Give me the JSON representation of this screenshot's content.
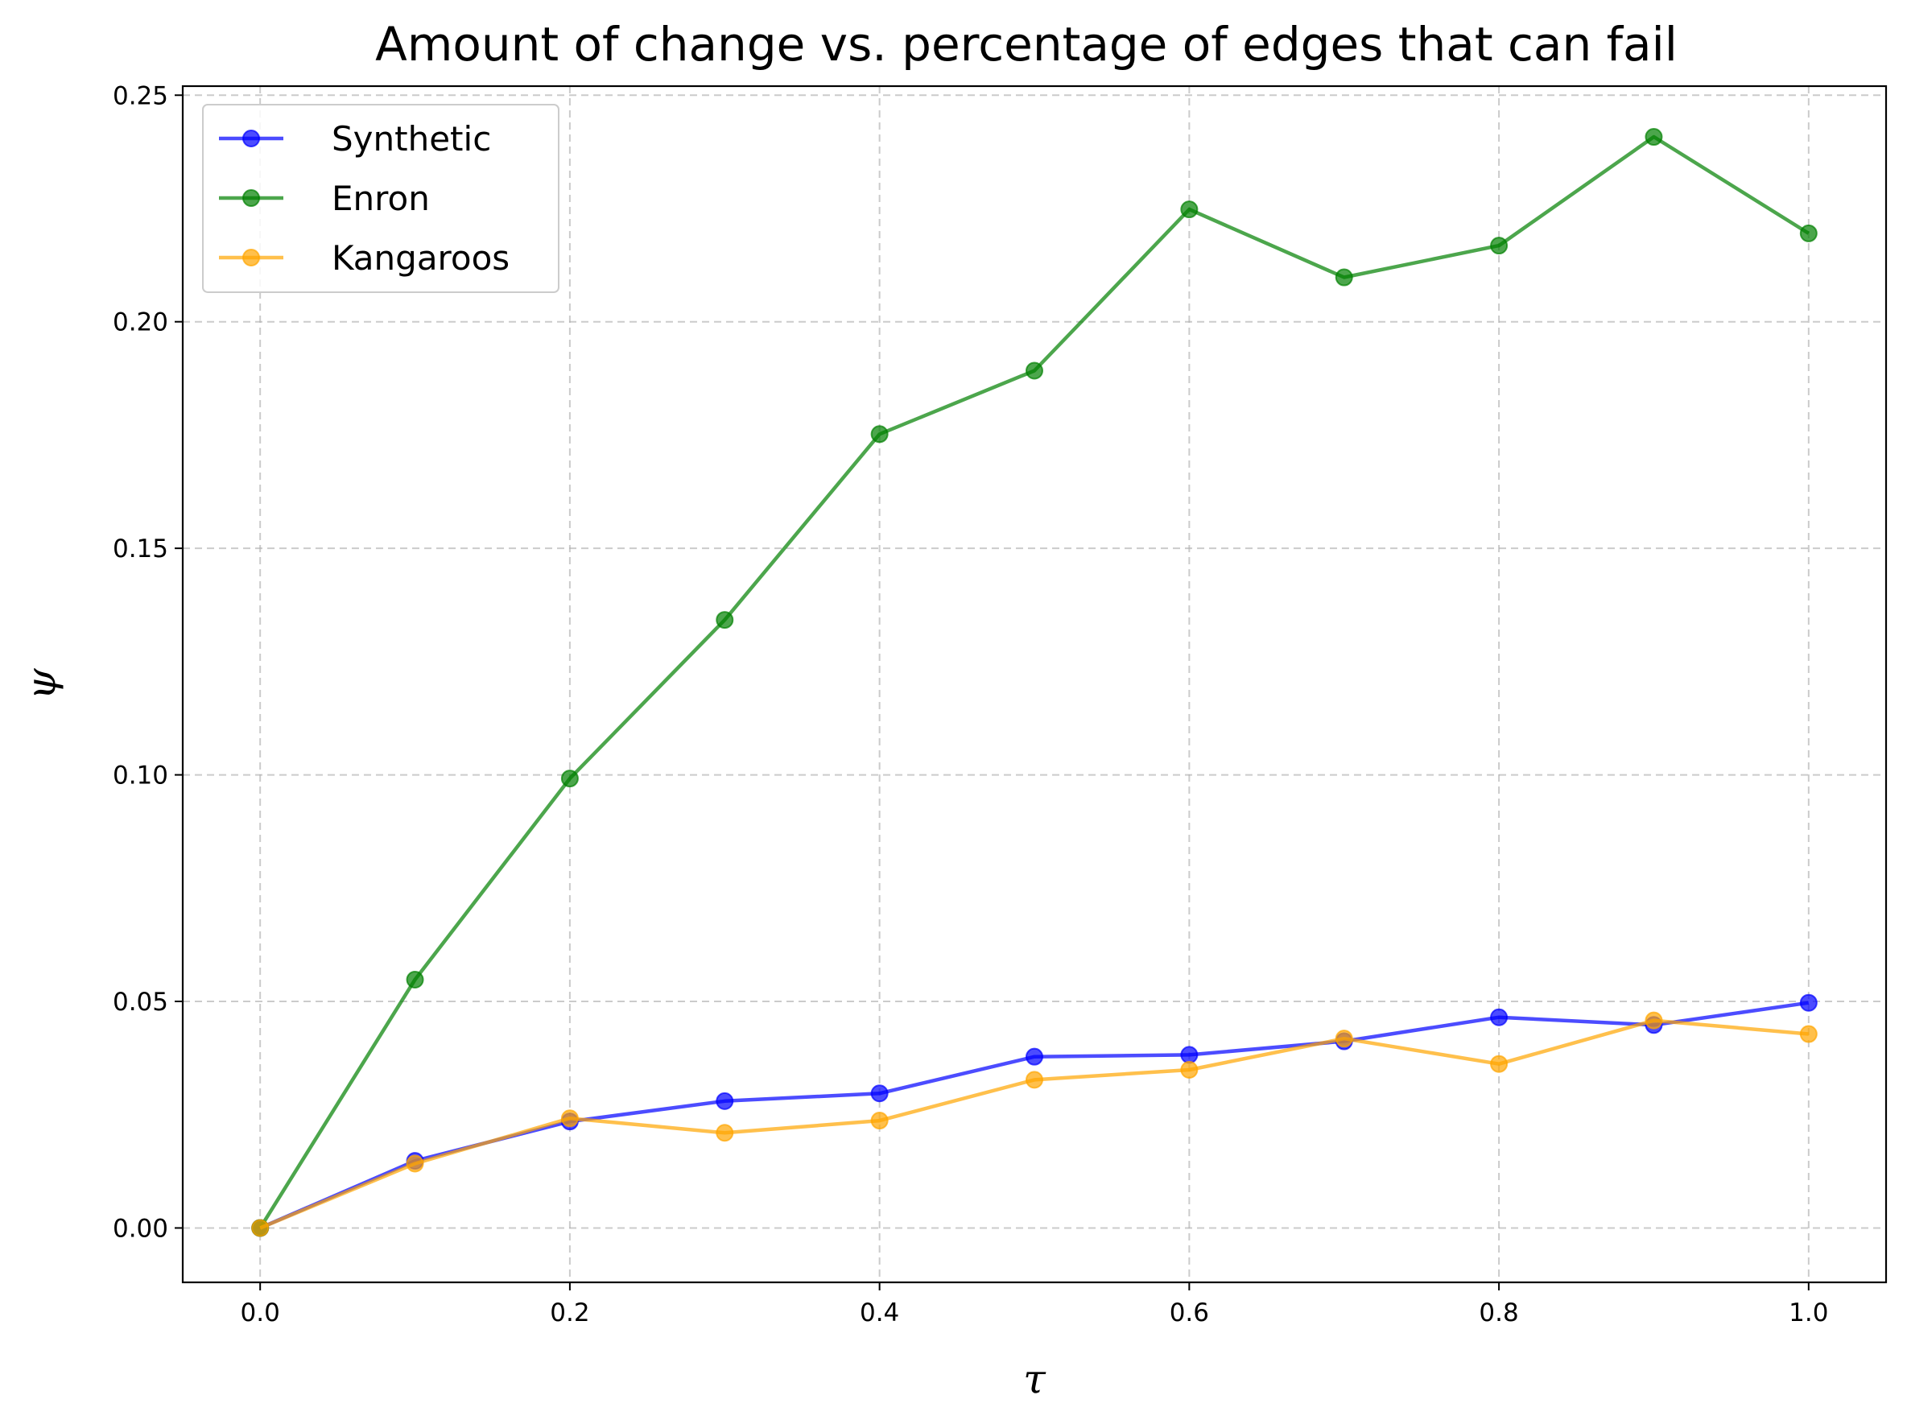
{
  "chart_data": {
    "type": "line",
    "title": "Amount of change vs. percentage of edges that can fail",
    "xlabel": "τ",
    "ylabel": "ψ",
    "xlim": [
      -0.05,
      1.05
    ],
    "ylim": [
      -0.012,
      0.252
    ],
    "x_ticks": [
      0.0,
      0.2,
      0.4,
      0.6,
      0.8,
      1.0
    ],
    "x_tick_labels": [
      "0.0",
      "0.2",
      "0.4",
      "0.6",
      "0.8",
      "1.0"
    ],
    "y_ticks": [
      0.0,
      0.05,
      0.1,
      0.15,
      0.2,
      0.25
    ],
    "y_tick_labels": [
      "0.00",
      "0.05",
      "0.10",
      "0.15",
      "0.20",
      "0.25"
    ],
    "grid": true,
    "legend_position": "top-left",
    "x": [
      0.0,
      0.1,
      0.2,
      0.3,
      0.4,
      0.5,
      0.6,
      0.7,
      0.8,
      0.9,
      1.0
    ],
    "series": [
      {
        "name": "Synthetic",
        "color": "#0000ff",
        "values": [
          0.0,
          0.0148,
          0.0235,
          0.028,
          0.0297,
          0.0378,
          0.0382,
          0.0412,
          0.0465,
          0.0448,
          0.0497
        ]
      },
      {
        "name": "Enron",
        "color": "#008000",
        "values": [
          0.0,
          0.0548,
          0.0992,
          0.1342,
          0.1752,
          0.1892,
          0.2248,
          0.2098,
          0.2168,
          0.2408,
          0.2195
        ]
      },
      {
        "name": "Kangaroos",
        "color": "#ffa500",
        "values": [
          0.0,
          0.0142,
          0.0242,
          0.021,
          0.0237,
          0.0327,
          0.0349,
          0.0418,
          0.0362,
          0.0458,
          0.0428
        ]
      }
    ]
  }
}
